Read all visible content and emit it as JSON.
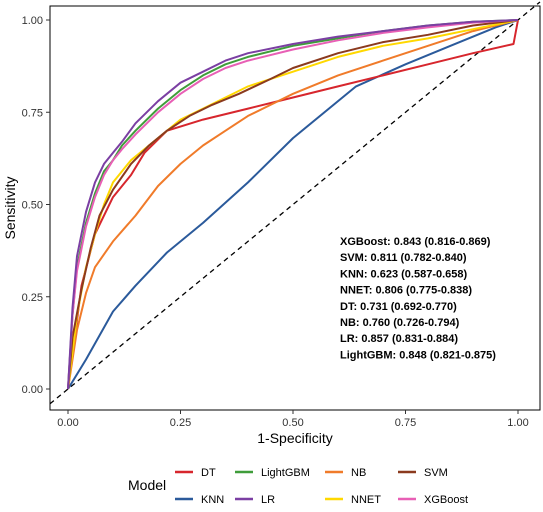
{
  "chart_data": {
    "type": "line",
    "title": "",
    "xlabel": "1-Specificity",
    "ylabel": "Sensitivity",
    "xlim": [
      0,
      1
    ],
    "ylim": [
      0,
      1
    ],
    "x_ticks": [
      "0.00",
      "0.25",
      "0.50",
      "0.75",
      "1.00"
    ],
    "y_ticks": [
      "0.00",
      "0.25",
      "0.50",
      "0.75",
      "1.00"
    ],
    "grid": false,
    "reference_line": "diagonal",
    "legend": {
      "title": "Model",
      "placement": "bottom",
      "entries": [
        "DT",
        "LightGBM",
        "NB",
        "SVM",
        "KNN",
        "LR",
        "NNET",
        "XGBoost"
      ]
    },
    "auc_annotations": [
      "XGBoost: 0.843 (0.816-0.869)",
      "SVM: 0.811 (0.782-0.840)",
      "KNN: 0.623 (0.587-0.658)",
      "NNET: 0.806 (0.775-0.838)",
      "DT: 0.731 (0.692-0.770)",
      "NB: 0.760 (0.726-0.794)",
      "LR: 0.857 (0.831-0.884)",
      "LightGBM: 0.848 (0.821-0.875)"
    ],
    "series": [
      {
        "name": "DT",
        "color": "#d7262d",
        "x": [
          0,
          0.03,
          0.06,
          0.1,
          0.14,
          0.17,
          0.22,
          0.3,
          0.4,
          0.5,
          0.6,
          0.7,
          0.8,
          0.9,
          0.99,
          1.0
        ],
        "y": [
          0,
          0.28,
          0.42,
          0.52,
          0.58,
          0.64,
          0.7,
          0.73,
          0.76,
          0.79,
          0.82,
          0.85,
          0.88,
          0.91,
          0.935,
          1.0
        ]
      },
      {
        "name": "KNN",
        "color": "#2b5a9b",
        "x": [
          0,
          0.04,
          0.1,
          0.15,
          0.22,
          0.3,
          0.4,
          0.5,
          0.64,
          0.75,
          0.85,
          0.95,
          1.0
        ],
        "y": [
          0,
          0.08,
          0.21,
          0.28,
          0.37,
          0.45,
          0.56,
          0.68,
          0.82,
          0.88,
          0.93,
          0.98,
          1.0
        ]
      },
      {
        "name": "LightGBM",
        "color": "#3f9d3a",
        "x": [
          0,
          0.01,
          0.02,
          0.04,
          0.06,
          0.08,
          0.1,
          0.12,
          0.15,
          0.2,
          0.25,
          0.3,
          0.35,
          0.4,
          0.5,
          0.6,
          0.7,
          0.8,
          0.9,
          1.0
        ],
        "y": [
          0,
          0.2,
          0.33,
          0.45,
          0.53,
          0.59,
          0.62,
          0.66,
          0.7,
          0.76,
          0.81,
          0.85,
          0.88,
          0.9,
          0.93,
          0.95,
          0.97,
          0.985,
          0.995,
          1.0
        ]
      },
      {
        "name": "LR",
        "color": "#7b3fa3",
        "x": [
          0,
          0.01,
          0.02,
          0.04,
          0.06,
          0.08,
          0.1,
          0.12,
          0.15,
          0.2,
          0.25,
          0.3,
          0.35,
          0.4,
          0.5,
          0.6,
          0.7,
          0.8,
          0.9,
          1.0
        ],
        "y": [
          0,
          0.22,
          0.36,
          0.48,
          0.56,
          0.61,
          0.64,
          0.67,
          0.72,
          0.78,
          0.83,
          0.86,
          0.89,
          0.91,
          0.935,
          0.955,
          0.97,
          0.985,
          0.995,
          1.0
        ]
      },
      {
        "name": "NB",
        "color": "#f07b2a",
        "x": [
          0,
          0.02,
          0.04,
          0.06,
          0.1,
          0.15,
          0.2,
          0.25,
          0.3,
          0.35,
          0.4,
          0.45,
          0.5,
          0.6,
          0.7,
          0.8,
          0.9,
          1.0
        ],
        "y": [
          0,
          0.16,
          0.26,
          0.33,
          0.4,
          0.47,
          0.55,
          0.61,
          0.66,
          0.7,
          0.74,
          0.77,
          0.8,
          0.85,
          0.89,
          0.93,
          0.97,
          1.0
        ]
      },
      {
        "name": "NNET",
        "color": "#ffd800",
        "x": [
          0,
          0.02,
          0.04,
          0.06,
          0.08,
          0.1,
          0.14,
          0.2,
          0.25,
          0.3,
          0.35,
          0.4,
          0.5,
          0.6,
          0.7,
          0.8,
          0.9,
          1.0
        ],
        "y": [
          0,
          0.2,
          0.33,
          0.42,
          0.5,
          0.56,
          0.62,
          0.68,
          0.73,
          0.76,
          0.79,
          0.82,
          0.86,
          0.9,
          0.93,
          0.95,
          0.975,
          1.0
        ]
      },
      {
        "name": "SVM",
        "color": "#8b3a1e",
        "x": [
          0,
          0.01,
          0.03,
          0.05,
          0.07,
          0.1,
          0.14,
          0.18,
          0.22,
          0.27,
          0.32,
          0.38,
          0.45,
          0.5,
          0.6,
          0.7,
          0.8,
          0.9,
          1.0
        ],
        "y": [
          0,
          0.14,
          0.27,
          0.38,
          0.47,
          0.54,
          0.61,
          0.66,
          0.7,
          0.74,
          0.77,
          0.8,
          0.84,
          0.87,
          0.91,
          0.94,
          0.96,
          0.985,
          1.0
        ]
      },
      {
        "name": "XGBoost",
        "color": "#e85fb5",
        "x": [
          0,
          0.01,
          0.02,
          0.04,
          0.06,
          0.08,
          0.1,
          0.12,
          0.15,
          0.2,
          0.25,
          0.3,
          0.35,
          0.4,
          0.5,
          0.6,
          0.7,
          0.8,
          0.9,
          1.0
        ],
        "y": [
          0,
          0.2,
          0.32,
          0.44,
          0.52,
          0.58,
          0.62,
          0.65,
          0.69,
          0.75,
          0.8,
          0.84,
          0.87,
          0.89,
          0.92,
          0.945,
          0.965,
          0.98,
          0.993,
          1.0
        ]
      }
    ]
  }
}
